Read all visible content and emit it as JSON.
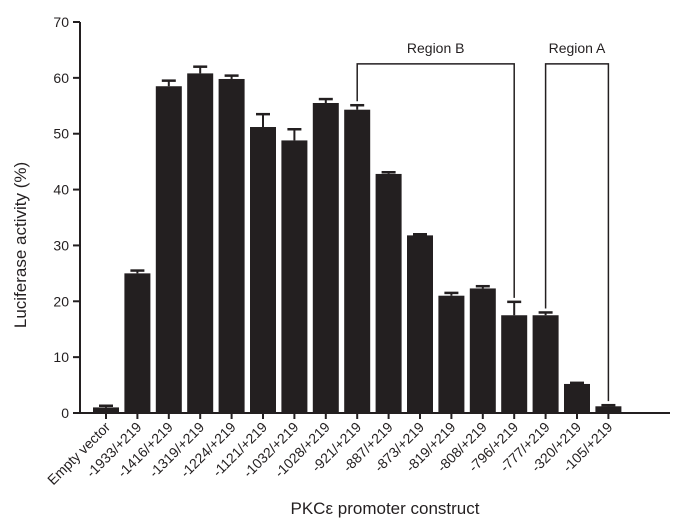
{
  "chart_data": {
    "type": "bar",
    "categories": [
      "Empty vector",
      "-1933/+219",
      "-1416/+219",
      "-1319/+219",
      "-1224/+219",
      "-1121/+219",
      "-1032/+219",
      "-1028/+219",
      "-921/+219",
      "-887/+219",
      "-873/+219",
      "-819/+219",
      "-808/+219",
      "-796/+219",
      "-777/+219",
      "-320/+219",
      "-105/+219"
    ],
    "values": [
      1.0,
      25.0,
      58.5,
      60.8,
      59.8,
      51.2,
      48.8,
      55.5,
      54.3,
      42.8,
      31.8,
      21.0,
      22.3,
      17.5,
      17.5,
      5.2,
      1.2
    ],
    "errors": [
      0.3,
      0.5,
      1.0,
      1.2,
      0.6,
      2.3,
      2.0,
      0.7,
      0.8,
      0.3,
      0.2,
      0.5,
      0.4,
      2.4,
      0.5,
      0.2,
      0.2
    ],
    "xlabel": "PKCε promoter construct",
    "ylabel": "Luciferase activity (%)",
    "ylim": [
      0,
      70
    ],
    "yticks": [
      0,
      10,
      20,
      30,
      40,
      50,
      60,
      70
    ],
    "grid": false,
    "bar_color": "#231f20",
    "annotations": [
      {
        "label": "Region B",
        "from_category": "-921/+219",
        "to_category": "-796/+219",
        "bracket_value": 62.5
      },
      {
        "label": "Region A",
        "from_category": "-777/+219",
        "to_category": "-105/+219",
        "bracket_value": 62.5
      }
    ]
  }
}
